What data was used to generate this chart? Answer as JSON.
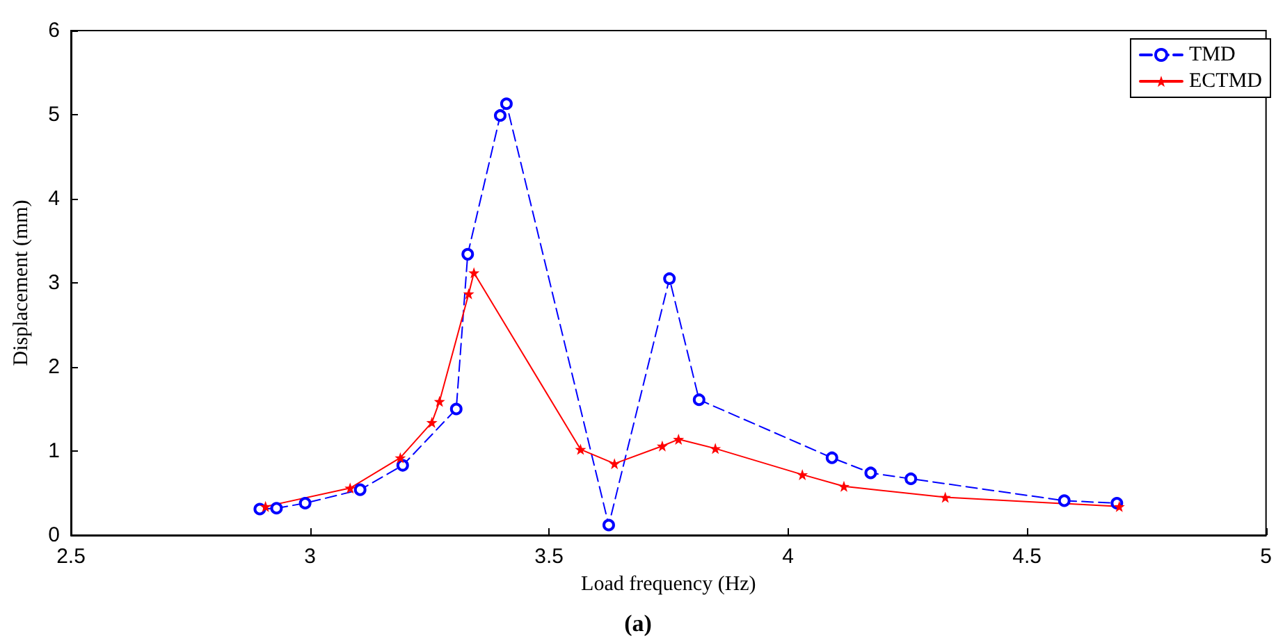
{
  "chart_data": {
    "type": "line",
    "xlabel": "Load frequency (Hz)",
    "ylabel": "Displacement (mm)",
    "annotations": [
      "(a)"
    ],
    "xlim": [
      2.5,
      5
    ],
    "xticks": [
      2.5,
      3,
      3.5,
      4,
      4.5,
      5
    ],
    "ylim": [
      0,
      6
    ],
    "yticks": [
      0,
      1,
      2,
      3,
      4,
      5,
      6
    ],
    "grid": false,
    "legend": "top right",
    "series": [
      {
        "name": "TMD",
        "color": "#0000ff",
        "marker": "circle",
        "line_style": "dashed",
        "x": [
          2.895,
          2.93,
          2.99,
          3.105,
          3.194,
          3.306,
          3.33,
          3.398,
          3.411,
          3.625,
          3.752,
          3.814,
          4.092,
          4.173,
          4.257,
          4.578,
          4.688
        ],
        "values": [
          0.31,
          0.32,
          0.38,
          0.54,
          0.83,
          1.5,
          3.34,
          4.99,
          5.13,
          0.12,
          3.05,
          1.61,
          0.92,
          0.74,
          0.67,
          0.41,
          0.38
        ]
      },
      {
        "name": "ECTMD",
        "color": "#ff0000",
        "marker": "star",
        "line_style": "solid",
        "x": [
          2.907,
          3.084,
          3.189,
          3.255,
          3.271,
          3.332,
          3.343,
          3.566,
          3.637,
          3.737,
          3.771,
          3.848,
          4.03,
          4.117,
          4.329,
          4.693
        ],
        "values": [
          0.34,
          0.56,
          0.92,
          1.34,
          1.59,
          2.87,
          3.12,
          1.02,
          0.85,
          1.06,
          1.14,
          1.03,
          0.72,
          0.58,
          0.45,
          0.34
        ]
      }
    ]
  }
}
